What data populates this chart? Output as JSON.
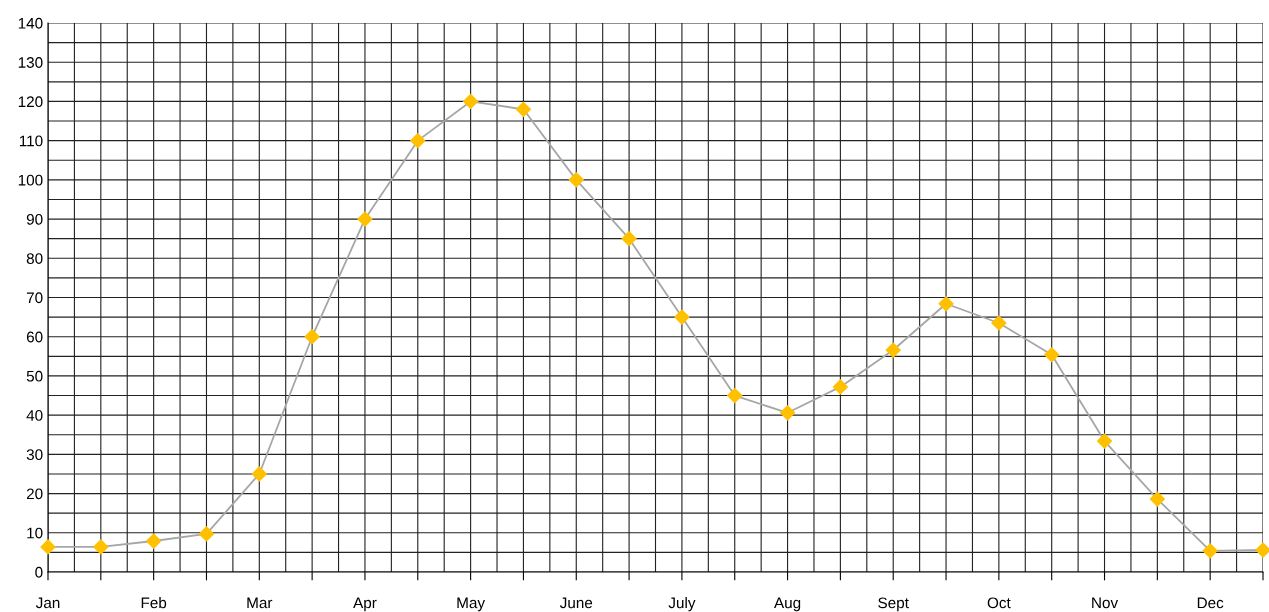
{
  "chart_data": {
    "type": "line",
    "categories": [
      "Jan",
      null,
      "Feb",
      null,
      "Mar",
      null,
      "Apr",
      null,
      "May",
      null,
      "June",
      null,
      "July",
      null,
      "Aug",
      null,
      "Sept",
      null,
      "Oct",
      null,
      "Nov",
      null,
      "Dec",
      null
    ],
    "series": [
      {
        "color": "#ffc000",
        "values": [
          6.4,
          6.4,
          7.9,
          9.7,
          25,
          60,
          90,
          110,
          120,
          118,
          100,
          85,
          65,
          45,
          40.6,
          47.2,
          56.6,
          68.4,
          63.5,
          55.4,
          33.4,
          18.6,
          5.4,
          5.6
        ]
      }
    ],
    "ylim": [
      0,
      140
    ],
    "yticks": [
      0,
      10,
      20,
      30,
      40,
      50,
      60,
      70,
      80,
      90,
      100,
      110,
      120,
      130,
      140
    ],
    "grid": true,
    "marker": "diamond",
    "line_style": "solid",
    "legend": false
  }
}
